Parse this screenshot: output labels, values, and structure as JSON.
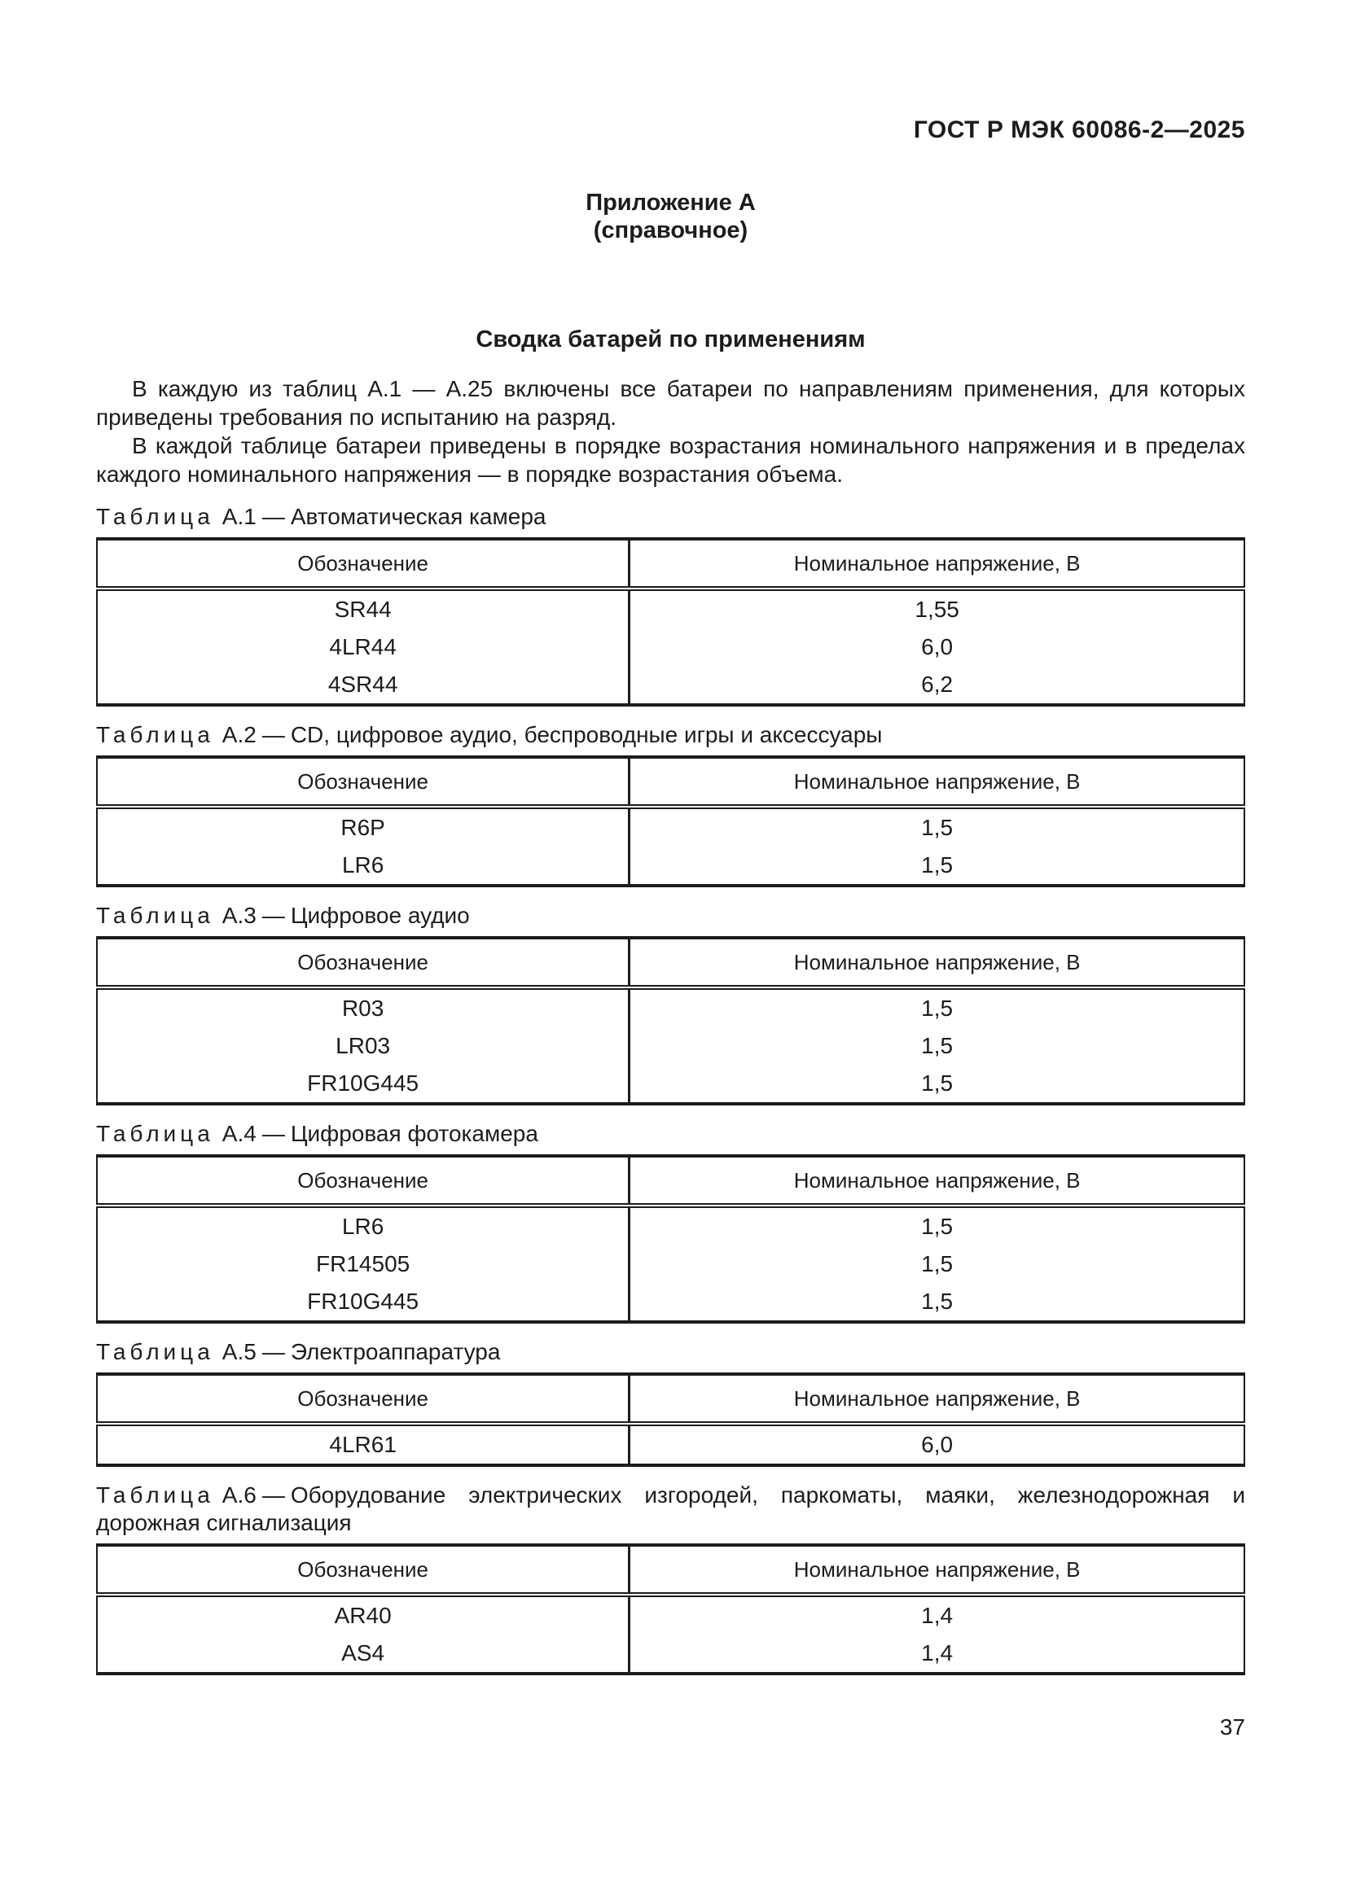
{
  "header": {
    "standard_code": "ГОСТ Р МЭК 60086-2—2025"
  },
  "appendix": {
    "title": "Приложение А",
    "type": "(справочное)"
  },
  "section": {
    "title": "Сводка батарей по применениям",
    "paragraphs": [
      "В каждую из таблиц А.1 — А.25 включены все батареи по направлениям применения, для которых приведены требования по испытанию на разряд.",
      "В каждой таблице батареи приведены в порядке возрастания номинального напряжения и в пределах каждого номинального напряжения — в порядке возрастания объема."
    ]
  },
  "table_defaults": {
    "caption_word": "Таблица",
    "dash": "—",
    "columns": [
      "Обозначение",
      "Номинальное напряжение, В"
    ]
  },
  "tables": [
    {
      "number": "А.1",
      "title": "Автоматическая камера",
      "rows": [
        [
          "SR44",
          "1,55"
        ],
        [
          "4LR44",
          "6,0"
        ],
        [
          "4SR44",
          "6,2"
        ]
      ]
    },
    {
      "number": "А.2",
      "title": "CD, цифровое аудио, беспроводные игры и аксессуары",
      "rows": [
        [
          "R6P",
          "1,5"
        ],
        [
          "LR6",
          "1,5"
        ]
      ]
    },
    {
      "number": "А.3",
      "title": "Цифровое аудио",
      "rows": [
        [
          "R03",
          "1,5"
        ],
        [
          "LR03",
          "1,5"
        ],
        [
          "FR10G445",
          "1,5"
        ]
      ]
    },
    {
      "number": "А.4",
      "title": "Цифровая фотокамера",
      "rows": [
        [
          "LR6",
          "1,5"
        ],
        [
          "FR14505",
          "1,5"
        ],
        [
          "FR10G445",
          "1,5"
        ]
      ]
    },
    {
      "number": "А.5",
      "title": "Электроаппаратура",
      "rows": [
        [
          "4LR61",
          "6,0"
        ]
      ]
    },
    {
      "number": "А.6",
      "title": "Оборудование электрических изгородей, паркоматы, маяки, железнодорожная и дорожная сигнализация",
      "rows": [
        [
          "AR40",
          "1,4"
        ],
        [
          "AS4",
          "1,4"
        ]
      ]
    }
  ],
  "footer": {
    "page_number": "37"
  }
}
